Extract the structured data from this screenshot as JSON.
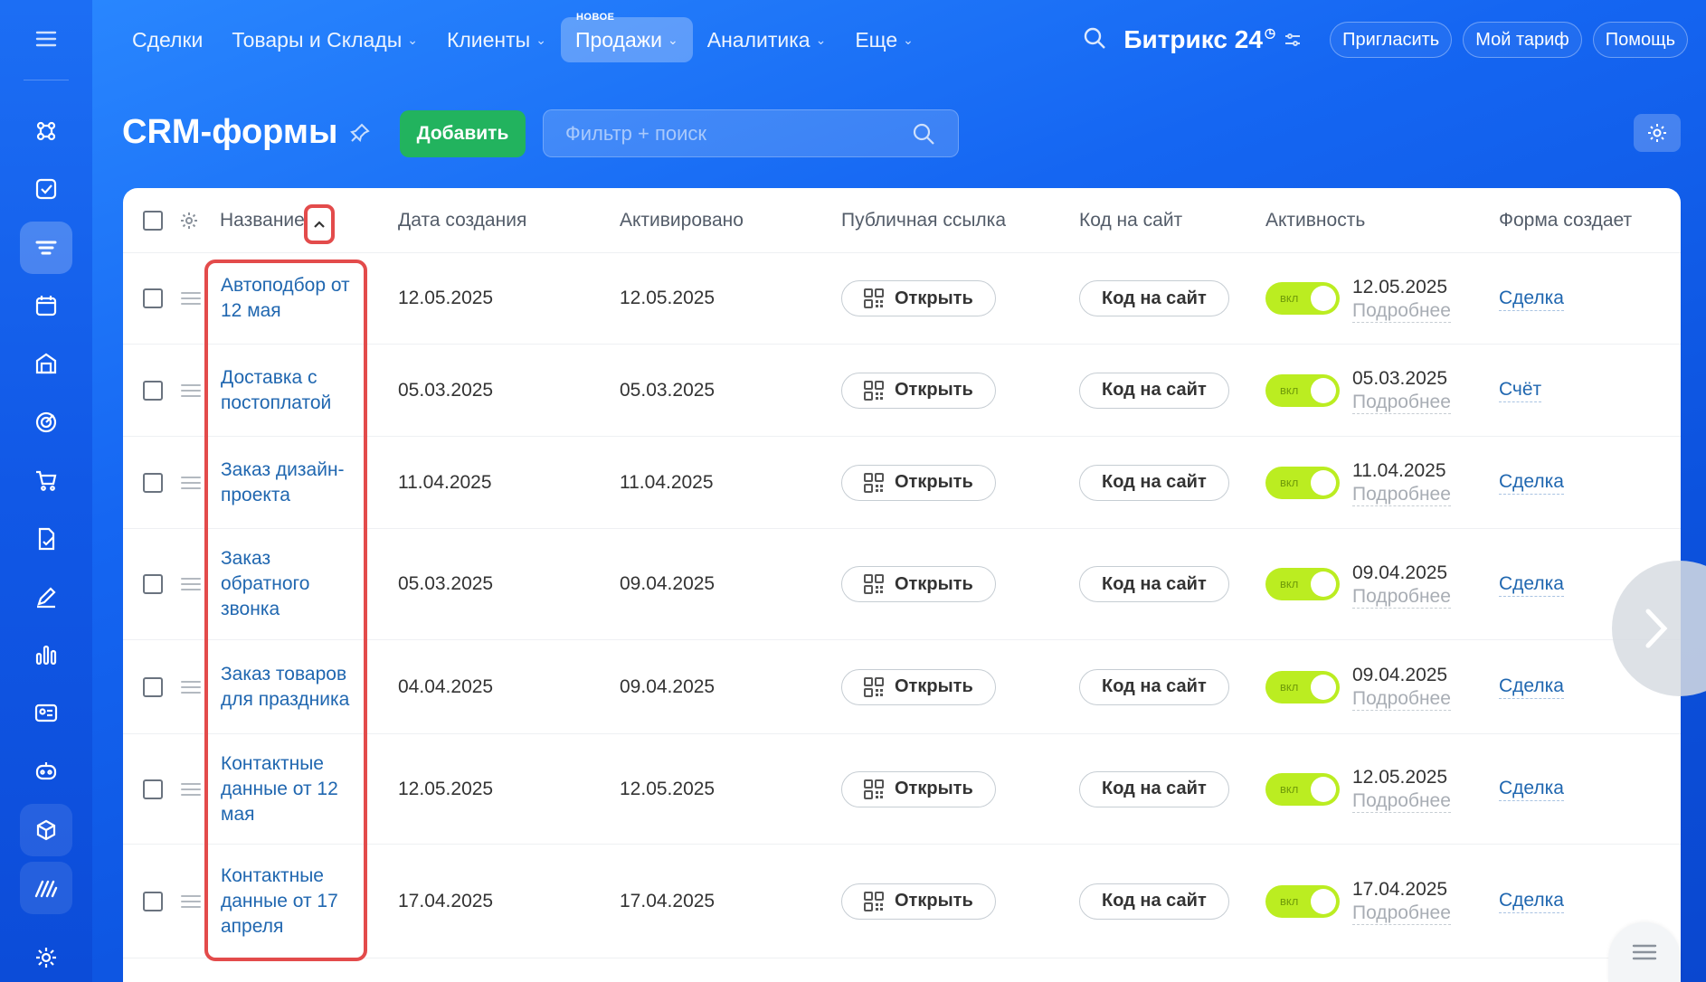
{
  "topnav": {
    "items": [
      {
        "label": "Сделки",
        "chevron": false,
        "active": false
      },
      {
        "label": "Товары и Склады",
        "chevron": true,
        "active": false
      },
      {
        "label": "Клиенты",
        "chevron": true,
        "active": false
      },
      {
        "label": "Продажи",
        "chevron": true,
        "active": true,
        "badge": "НОВОЕ"
      },
      {
        "label": "Аналитика",
        "chevron": true,
        "active": false
      },
      {
        "label": "Еще",
        "chevron": true,
        "active": false
      }
    ],
    "logo": "Битрикс",
    "logo_num": "24",
    "invite": "Пригласить",
    "tariff": "Мой тариф",
    "help": "Помощь"
  },
  "page": {
    "title": "CRM-формы",
    "add_button": "Добавить",
    "search_placeholder": "Фильтр + поиск"
  },
  "table": {
    "columns": [
      "Название",
      "Дата создания",
      "Активировано",
      "Публичная ссылка",
      "Код на сайт",
      "Активность",
      "Форма создает"
    ],
    "open_label": "Открыть",
    "code_label": "Код на сайт",
    "toggle_label": "вкл",
    "more_label": "Подробнее",
    "rows": [
      {
        "name": "Автоподбор от 12 мая",
        "created": "12.05.2025",
        "activated": "12.05.2025",
        "activity_date": "12.05.2025",
        "entity": "Сделка"
      },
      {
        "name": "Доставка с постоплатой",
        "created": "05.03.2025",
        "activated": "05.03.2025",
        "activity_date": "05.03.2025",
        "entity": "Счёт"
      },
      {
        "name": "Заказ дизайн-проекта",
        "created": "11.04.2025",
        "activated": "11.04.2025",
        "activity_date": "11.04.2025",
        "entity": "Сделка"
      },
      {
        "name": "Заказ обратного звонка",
        "created": "05.03.2025",
        "activated": "09.04.2025",
        "activity_date": "09.04.2025",
        "entity": "Сделка"
      },
      {
        "name": "Заказ товаров для праздника",
        "created": "04.04.2025",
        "activated": "09.04.2025",
        "activity_date": "09.04.2025",
        "entity": "Сделка"
      },
      {
        "name": "Контактные данные от 12 мая",
        "created": "12.05.2025",
        "activated": "12.05.2025",
        "activity_date": "12.05.2025",
        "entity": "Сделка"
      },
      {
        "name": "Контактные данные от 17 апреля",
        "created": "17.04.2025",
        "activated": "17.04.2025",
        "activity_date": "17.04.2025",
        "entity": "Сделка"
      }
    ]
  },
  "colors": {
    "accent_green": "#22b35e",
    "toggle_on": "#bbed21",
    "link": "#2067b0",
    "highlight": "#e34b4b"
  }
}
